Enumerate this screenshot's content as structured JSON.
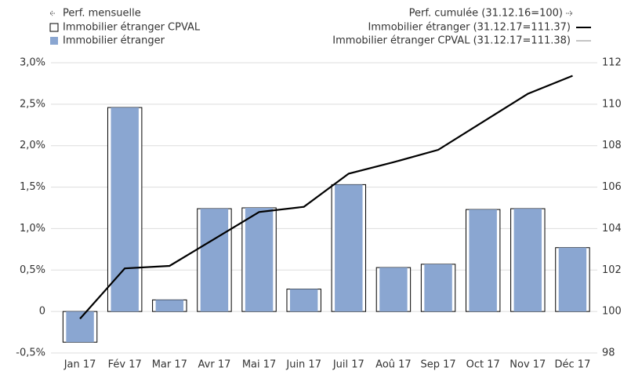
{
  "chart_data": {
    "type": "bar",
    "legend_headers": {
      "left": "Perf. mensuelle",
      "right": "Perf. cumulée (31.12.16=100)"
    },
    "categories": [
      "Jan 17",
      "Fév 17",
      "Mar 17",
      "Avr 17",
      "Mai 17",
      "Juin 17",
      "Juil 17",
      "Aoû 17",
      "Sep 17",
      "Oct 17",
      "Nov 17",
      "Déc 17"
    ],
    "series": [
      {
        "name": "Immobilier étranger CPVAL",
        "type": "bar",
        "color": "#ffffff",
        "stroke": "#000000",
        "values": [
          -0.37,
          2.46,
          0.14,
          1.24,
          1.25,
          0.27,
          1.53,
          0.53,
          0.57,
          1.23,
          1.24,
          0.77
        ]
      },
      {
        "name": "Immobilier étranger",
        "type": "bar",
        "color": "#8aa6d1",
        "values": [
          -0.37,
          2.46,
          0.14,
          1.24,
          1.25,
          0.27,
          1.53,
          0.53,
          0.57,
          1.23,
          1.24,
          0.77
        ]
      },
      {
        "name": "Immobilier étranger CPVAL (31.12.17=111.38)",
        "type": "line",
        "axis": "y2",
        "color": "#888888",
        "values": [
          99.65,
          102.08,
          102.2,
          103.5,
          104.8,
          105.05,
          106.65,
          107.2,
          107.8,
          109.15,
          110.5,
          111.38
        ]
      },
      {
        "name": "Immobilier étranger (31.12.17=111.37)",
        "type": "line",
        "axis": "y2",
        "color": "#000000",
        "values": [
          99.65,
          102.08,
          102.2,
          103.5,
          104.8,
          105.05,
          106.65,
          107.2,
          107.8,
          109.15,
          110.5,
          111.37
        ]
      }
    ],
    "ylim": [
      -0.5,
      3.0
    ],
    "yticks": [
      {
        "value": -0.5,
        "label": "-0,5%"
      },
      0,
      {
        "value": 0.5,
        "label": "0,5%"
      },
      {
        "value": 1.0,
        "label": "1,0%"
      },
      {
        "value": 1.5,
        "label": "1,5%"
      },
      {
        "value": 2.0,
        "label": "2,0%"
      },
      {
        "value": 2.5,
        "label": "2,5%"
      },
      {
        "value": 3.0,
        "label": "3,0%"
      }
    ],
    "y2lim": [
      98,
      112
    ],
    "y2ticks": [
      98,
      100,
      102,
      104,
      106,
      108,
      110,
      112
    ],
    "grid": true
  }
}
